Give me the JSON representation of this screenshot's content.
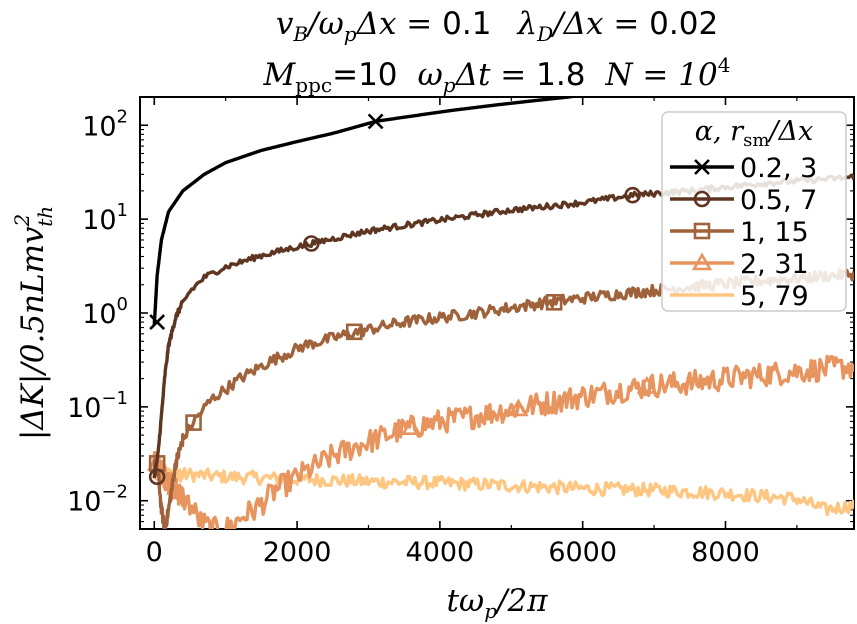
{
  "chart_data": {
    "type": "line",
    "title_line1": {
      "p1": "v",
      "p1sub": "B",
      "p2": "/ω",
      "p2sub": "p",
      "p3": "Δx = ",
      "p3val": "0.1",
      "p4": "λ",
      "p4sub": "D",
      "p5": "/Δx = ",
      "p5val": "0.02"
    },
    "title_line2": {
      "p1": "M",
      "p1sub": "ppc",
      "p1val": "=10",
      "p2": "ω",
      "p2sub": "p",
      "p3": "Δt = ",
      "p3val": "1.8",
      "p4": "N = 10",
      "p4sup": "4"
    },
    "xlabel": {
      "main": "tω",
      "sub": "p",
      "rest": "/2π"
    },
    "ylabel": {
      "main": "|ΔK|/0.5nLmv",
      "sup": "2",
      "sub": "th"
    },
    "xlim": [
      -200,
      9800
    ],
    "ylim": [
      0.005,
      200
    ],
    "yscale": "log",
    "xticks": [
      0,
      2000,
      4000,
      6000,
      8000
    ],
    "xtick_labels": [
      "0",
      "2000",
      "4000",
      "6000",
      "8000"
    ],
    "yticks": [
      0.01,
      0.1,
      1,
      10,
      100
    ],
    "ytick_labels": [
      {
        "base": "10",
        "exp": "−2"
      },
      {
        "base": "10",
        "exp": "−1"
      },
      {
        "base": "10",
        "exp": "0"
      },
      {
        "base": "10",
        "exp": "1"
      },
      {
        "base": "10",
        "exp": "2"
      }
    ],
    "legend_title": {
      "a": "α, r",
      "asub": "sm",
      "b": "/Δx"
    },
    "legend_position": "top-right",
    "series": [
      {
        "name": "0.2, 3",
        "color": "#000000",
        "marker": "x",
        "noise": 0,
        "x": [
          0,
          40,
          100,
          200,
          400,
          700,
          1000,
          1500,
          2000,
          2500,
          3100,
          3600,
          4200,
          4800,
          5300,
          5800,
          5900
        ],
        "y": [
          0.75,
          2.5,
          6,
          12,
          20,
          30,
          40,
          54,
          67,
          82,
          110,
          125,
          145,
          165,
          182,
          200,
          205
        ],
        "markers_x": [
          40,
          3100
        ],
        "markers_y": [
          0.8,
          110
        ]
      },
      {
        "name": "0.5, 7",
        "color": "#5e3520",
        "marker": "o",
        "noise": 0.03,
        "x": [
          0,
          50,
          100,
          150,
          200,
          300,
          400,
          500,
          700,
          1000,
          1500,
          2200,
          3000,
          4000,
          5000,
          6000,
          6700,
          7500,
          8500,
          9800
        ],
        "y": [
          0.018,
          0.03,
          0.08,
          0.22,
          0.45,
          0.9,
          1.3,
          1.7,
          2.4,
          3.1,
          4.1,
          5.5,
          7.5,
          9.8,
          12.5,
          15,
          18,
          20,
          24,
          28
        ],
        "markers_x": [
          40,
          2200,
          6700
        ],
        "markers_y": [
          0.018,
          5.5,
          18
        ]
      },
      {
        "name": "1, 15",
        "color": "#a0623a",
        "marker": "s",
        "noise": 0.06,
        "x": [
          0,
          60,
          100,
          150,
          200,
          300,
          400,
          550,
          800,
          1200,
          1600,
          2100,
          2800,
          3500,
          4500,
          5500,
          6500,
          7500,
          8500,
          9800
        ],
        "y": [
          0.025,
          0.018,
          0.008,
          0.005,
          0.008,
          0.025,
          0.045,
          0.07,
          0.12,
          0.2,
          0.3,
          0.45,
          0.62,
          0.8,
          1.0,
          1.3,
          1.6,
          1.9,
          2.2,
          2.6
        ],
        "markers_x": [
          40,
          550,
          2800,
          5600
        ],
        "markers_y": [
          0.025,
          0.068,
          0.63,
          1.3
        ]
      },
      {
        "name": "2, 31",
        "color": "#e8945e",
        "marker": "^",
        "noise": 0.13,
        "x": [
          0,
          100,
          200,
          350,
          500,
          650,
          800,
          950,
          1100,
          1250,
          1400,
          1550,
          1700,
          1900,
          2200,
          2500,
          2900,
          3500,
          4000,
          4500,
          5000,
          5500,
          6000,
          6500,
          7000,
          7500,
          8000,
          8500,
          9000,
          9800
        ],
        "y": [
          0.025,
          0.02,
          0.016,
          0.012,
          0.009,
          0.006,
          0.005,
          0.0048,
          0.0055,
          0.007,
          0.008,
          0.01,
          0.013,
          0.016,
          0.022,
          0.03,
          0.04,
          0.058,
          0.07,
          0.08,
          0.095,
          0.11,
          0.13,
          0.15,
          0.17,
          0.18,
          0.2,
          0.22,
          0.24,
          0.27
        ],
        "markers_x": [
          40,
          3600,
          5100,
          6900
        ],
        "markers_y": [
          0.025,
          0.06,
          0.095,
          0.165
        ]
      },
      {
        "name": "5, 79",
        "color": "#ffc682",
        "marker": "none",
        "noise": 0.07,
        "x": [
          0,
          500,
          1000,
          2000,
          3000,
          4000,
          5000,
          6000,
          7000,
          8000,
          9000,
          9400,
          9800
        ],
        "y": [
          0.019,
          0.019,
          0.018,
          0.017,
          0.016,
          0.0155,
          0.0145,
          0.0135,
          0.013,
          0.012,
          0.0105,
          0.008,
          0.009
        ],
        "markers_x": [],
        "markers_y": []
      }
    ]
  }
}
